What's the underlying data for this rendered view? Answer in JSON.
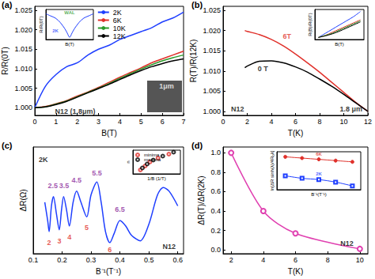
{
  "chart_data": [
    {
      "type": "line",
      "title": "(a)",
      "x_label": "B(T)",
      "y_label": "R/R(0T)",
      "x": [
        0,
        0.5,
        1,
        1.5,
        2,
        2.5,
        3,
        3.5,
        4,
        4.5,
        5,
        5.5,
        6,
        6.5,
        7
      ],
      "series": [
        {
          "name": "2K",
          "color": "#1f3fff",
          "values": [
            1.0,
            1.0055,
            1.0085,
            1.0105,
            1.0115,
            1.0135,
            1.015,
            1.016,
            1.0175,
            1.0185,
            1.0195,
            1.0205,
            1.022,
            1.023,
            1.0245
          ]
        },
        {
          "name": "6K",
          "color": "#e0302a",
          "values": [
            1.0,
            1.0003,
            1.001,
            1.0018,
            1.003,
            1.004,
            1.0052,
            1.0065,
            1.0078,
            1.009,
            1.0102,
            1.0115,
            1.0125,
            1.0135,
            1.0145
          ]
        },
        {
          "name": "10K",
          "color": "#2a9a2a",
          "values": [
            1.0,
            1.0002,
            1.0009,
            1.0017,
            1.0028,
            1.0039,
            1.005,
            1.0062,
            1.0075,
            1.0087,
            1.0099,
            1.011,
            1.012,
            1.0128,
            1.0135
          ]
        },
        {
          "name": "12K",
          "color": "#000000",
          "values": [
            1.0,
            1.0002,
            1.0008,
            1.0016,
            1.0027,
            1.0038,
            1.0049,
            1.006,
            1.0072,
            1.0084,
            1.0095,
            1.0105,
            1.0113,
            1.012,
            1.0125
          ]
        }
      ],
      "xlim": [
        0,
        7
      ],
      "xticks": [
        0,
        1,
        2,
        3,
        4,
        5,
        6,
        7
      ],
      "ylim": [
        0.998,
        1.026
      ],
      "yticks": [
        {
          "value": 1.0,
          "label": "1.000"
        },
        {
          "value": 1.005,
          "label": "1.005"
        },
        {
          "value": 1.01,
          "label": "1.010"
        },
        {
          "value": 1.015,
          "label": "1.015"
        },
        {
          "value": 1.02,
          "label": "1.020"
        },
        {
          "value": 1.025,
          "label": "1.025"
        }
      ],
      "legend": "upper center",
      "grid": false,
      "annotations": [
        {
          "text": "N12 (1.8μm)",
          "x": 1.9,
          "y": 0.999,
          "color": "#000000"
        },
        {
          "text": "1μm",
          "x": 6.2,
          "y": 1.0055,
          "color": "#ffffff"
        }
      ]
    },
    {
      "type": "line",
      "x_label": "B(T)",
      "y_label": "R/R(0T)",
      "x": [
        -0.5,
        -0.4,
        -0.3,
        -0.2,
        -0.1,
        -0.05,
        0,
        0.05,
        0.1,
        0.2,
        0.3,
        0.4,
        0.5
      ],
      "series": [
        {
          "color": "#1f3fff",
          "values": [
            1.0055,
            1.005,
            1.0045,
            1.0035,
            1.002,
            1.001,
            1.0,
            1.001,
            1.002,
            1.0035,
            1.0045,
            1.005,
            1.0055
          ]
        }
      ],
      "xlim": [
        -0.5,
        0.5
      ],
      "ylim": [
        0.9995,
        1.0065
      ],
      "tick_labels": false,
      "grid": false,
      "annotations": [
        {
          "text": "WAL",
          "x": 0,
          "y": 1.0058,
          "color": "#2a9a2a"
        },
        {
          "text": "2K",
          "x": -0.3,
          "y": 1.0015,
          "color": "#1f3fff"
        }
      ]
    },
    {
      "type": "line",
      "title": "(b)",
      "x_label": "T(K)",
      "y_label": "R(T)/R(12K)",
      "x": [
        1.8,
        2,
        3,
        4,
        5,
        6,
        7,
        8,
        9,
        10,
        11,
        12
      ],
      "series": [
        {
          "color": "#e0302a",
          "values": [
            1.02,
            1.0198,
            1.019,
            1.0178,
            1.0162,
            1.0142,
            1.012,
            1.0097,
            1.0072,
            1.0047,
            1.0022,
            1.0
          ]
        },
        {
          "color": "#000000",
          "values": [
            1.0108,
            1.0112,
            1.0124,
            1.0125,
            1.012,
            1.011,
            1.0097,
            1.008,
            1.0062,
            1.0042,
            1.0021,
            1.0
          ]
        }
      ],
      "xlim": [
        0,
        12
      ],
      "xticks": [
        0,
        2,
        4,
        6,
        8,
        10,
        12
      ],
      "ylim": [
        0.999,
        1.026
      ],
      "yticks": [
        {
          "value": 1.0,
          "label": "1.000"
        },
        {
          "value": 1.005,
          "label": "1.005"
        },
        {
          "value": 1.01,
          "label": "1.010"
        },
        {
          "value": 1.015,
          "label": "1.015"
        },
        {
          "value": 1.02,
          "label": "1.020"
        },
        {
          "value": 1.025,
          "label": "1.025"
        }
      ],
      "grid": false,
      "annotations": [
        {
          "text": "6T",
          "x": 5.3,
          "y": 1.0185,
          "color": "#e0302a"
        },
        {
          "text": "0 T",
          "x": 3.3,
          "y": 1.0105,
          "color": "#000000"
        },
        {
          "text": "N12",
          "x": 1.2,
          "y": 1.0005,
          "color": "#000000"
        },
        {
          "text": "1.8 μm",
          "x": 10.6,
          "y": 1.0005,
          "color": "#000000"
        }
      ]
    },
    {
      "type": "line",
      "x_label": "B(T)",
      "y_label": "R(B)/R(0T)",
      "x": [
        1,
        2,
        3,
        4,
        5,
        6,
        7
      ],
      "series": [
        {
          "color": "#1f3fff",
          "values": [
            1.0,
            1.004,
            1.008,
            1.012,
            1.016,
            1.02,
            1.025
          ]
        },
        {
          "color": "#e0302a",
          "values": [
            1.0,
            1.002,
            1.005,
            1.008,
            1.011,
            1.014,
            1.017
          ]
        },
        {
          "color": "#2a9a2a",
          "values": [
            1.0,
            1.002,
            1.004,
            1.007,
            1.01,
            1.013,
            1.016
          ]
        },
        {
          "color": "#000000",
          "values": [
            1.0,
            1.0015,
            1.0035,
            1.006,
            1.009,
            1.012,
            1.015
          ]
        }
      ],
      "xlim": [
        0.5,
        7.5
      ],
      "ylim": [
        0.998,
        1.027
      ],
      "tick_labels": false,
      "grid": false
    },
    {
      "type": "line",
      "title": "(c)",
      "x_label": "B⁻¹(T⁻¹)",
      "y_label": "ΔR(Ω)",
      "x": [
        0.14,
        0.15,
        0.155,
        0.163,
        0.17,
        0.18,
        0.19,
        0.198,
        0.205,
        0.215,
        0.225,
        0.238,
        0.25,
        0.265,
        0.285,
        0.3,
        0.32,
        0.335,
        0.35,
        0.365,
        0.38,
        0.4,
        0.42,
        0.44,
        0.47,
        0.5,
        0.53,
        0.55,
        0.57,
        0.6
      ],
      "series": [
        {
          "color": "#1f3fff",
          "values": [
            0.3,
            -0.2,
            -0.5,
            0.2,
            0.45,
            0.0,
            -0.45,
            0.1,
            0.45,
            0.1,
            -0.35,
            0.3,
            0.6,
            0.3,
            -0.1,
            0.5,
            0.85,
            0.3,
            -0.5,
            -0.8,
            -0.55,
            -0.2,
            -0.35,
            -0.6,
            -0.75,
            -0.3,
            0.5,
            0.7,
            0.6,
            0.2
          ]
        }
      ],
      "xlim": [
        0.1,
        0.62
      ],
      "xticks": [
        0.1,
        0.2,
        0.3,
        0.4,
        0.5,
        0.6
      ],
      "ylim": [
        -1.1,
        1.8
      ],
      "tick_labels": "x",
      "grid": false,
      "annotations": [
        {
          "text": "2K",
          "x": 0.135,
          "y": 1.45,
          "color": "#000000"
        },
        {
          "text": "N12",
          "x": 0.57,
          "y": -0.9,
          "color": "#000000"
        },
        {
          "text": "2",
          "x": 0.155,
          "y": -0.8,
          "color": "#e0302a"
        },
        {
          "text": "3",
          "x": 0.19,
          "y": -0.75,
          "color": "#e0302a"
        },
        {
          "text": "4",
          "x": 0.225,
          "y": -0.65,
          "color": "#e0302a"
        },
        {
          "text": "5",
          "x": 0.285,
          "y": -0.4,
          "color": "#e0302a"
        },
        {
          "text": "6",
          "x": 0.365,
          "y": -1.0,
          "color": "#e0302a"
        },
        {
          "text": "2.5",
          "x": 0.168,
          "y": 0.75,
          "color": "#8a2a9a"
        },
        {
          "text": "3.5",
          "x": 0.207,
          "y": 0.75,
          "color": "#8a2a9a"
        },
        {
          "text": "4.5",
          "x": 0.25,
          "y": 0.9,
          "color": "#8a2a9a"
        },
        {
          "text": "5.5",
          "x": 0.32,
          "y": 1.1,
          "color": "#8a2a9a"
        },
        {
          "text": "6.5",
          "x": 0.4,
          "y": 0.1,
          "color": "#8a2a9a"
        }
      ]
    },
    {
      "type": "scatter",
      "x_label": "1/B (1/T)",
      "y_label": "n",
      "series": [
        {
          "name": "minima",
          "color": "#e0302a",
          "marker": "open_circle",
          "x": [
            0.155,
            0.19,
            0.225,
            0.285,
            0.365
          ],
          "values": [
            2,
            3,
            4,
            5,
            6
          ]
        },
        {
          "name": "maxima",
          "color": "#000000",
          "marker": "open_circle",
          "x": [
            0.17,
            0.205,
            0.25,
            0.32,
            0.4
          ],
          "values": [
            2.5,
            3.5,
            4.5,
            5.5,
            6.5
          ]
        }
      ],
      "xlim": [
        0.1,
        0.45
      ],
      "ylim": [
        1,
        7
      ],
      "tick_labels": false,
      "legend": "upper left",
      "grid": false
    },
    {
      "type": "line",
      "title": "(d)",
      "x_label": "T(K)",
      "y_label": "ΔR(T)/ΔR(2K)",
      "x": [
        2,
        4,
        6,
        10
      ],
      "series": [
        {
          "color": "#e040b0",
          "marker": "open_circle",
          "values": [
            1.0,
            0.4,
            0.17,
            0.01
          ]
        }
      ],
      "xlim": [
        1.5,
        10.5
      ],
      "xticks": [
        2,
        4,
        6,
        8,
        10
      ],
      "ylim": [
        -0.04,
        1.06
      ],
      "yticks": [
        {
          "value": 0,
          "label": "0.0"
        },
        {
          "value": 0.2,
          "label": "0.2"
        },
        {
          "value": 0.4,
          "label": "0.4"
        },
        {
          "value": 0.6,
          "label": "0.6"
        },
        {
          "value": 0.8,
          "label": "0.8"
        },
        {
          "value": 1.0,
          "label": "1.0"
        }
      ],
      "grid": false,
      "annotations": [
        {
          "text": "N12",
          "x": 9.2,
          "y": 0.07,
          "color": "#000000"
        }
      ]
    },
    {
      "type": "line",
      "x_label": "B⁻¹(T⁻¹)",
      "y_label": "ln[ΔR sinh(λ)/4R₀λ]",
      "x": [
        0.25,
        0.35,
        0.45,
        0.55,
        0.65
      ],
      "series": [
        {
          "color": "#e0302a",
          "marker": "circle",
          "values": [
            -3.0,
            -3.1,
            -3.2,
            -3.3,
            -3.4
          ]
        },
        {
          "color": "#1f3fff",
          "marker": "open_square",
          "values": [
            -4.5,
            -4.7,
            -4.8,
            -5.0,
            -5.3
          ]
        }
      ],
      "xlim": [
        0.2,
        0.7
      ],
      "ylim": [
        -5.6,
        -2.6
      ],
      "tick_labels": false,
      "grid": false,
      "annotations": [
        {
          "text": "6K",
          "x": 0.45,
          "y": -2.8,
          "color": "#e0302a"
        },
        {
          "text": "2K",
          "x": 0.45,
          "y": -4.35,
          "color": "#1f3fff"
        }
      ]
    }
  ]
}
